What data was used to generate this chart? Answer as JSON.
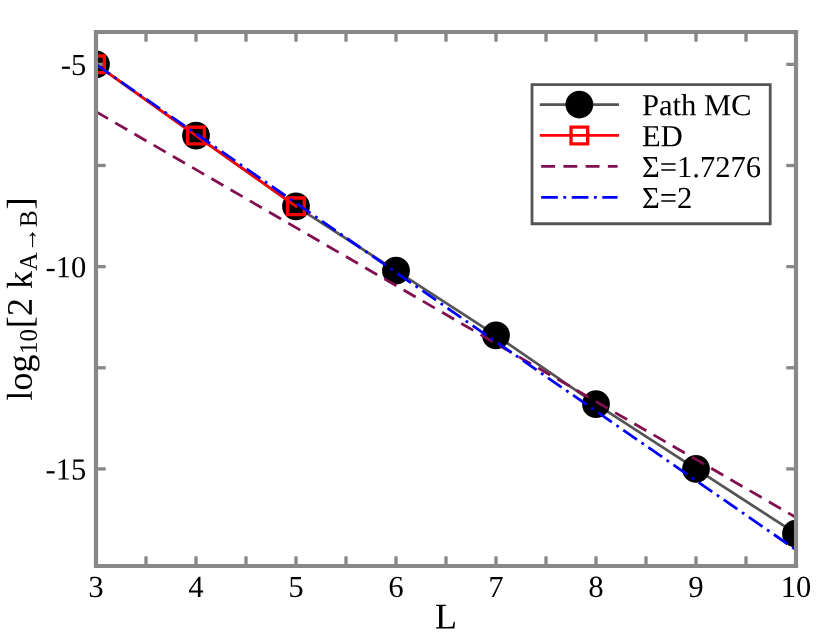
{
  "chart_data": {
    "type": "line",
    "xlabel": "L",
    "ylabel": "log$_{10}$[2 k$_{A→B}$]",
    "xlim": [
      3,
      10
    ],
    "ylim": [
      -17.4,
      -4.2
    ],
    "xticks": [
      3,
      {
        "value": 3.5,
        "label": null
      },
      4,
      {
        "value": 4.5,
        "label": null
      },
      5,
      {
        "value": 5.5,
        "label": null
      },
      6,
      {
        "value": 6.5,
        "label": null
      },
      7,
      {
        "value": 7.5,
        "label": null
      },
      8,
      {
        "value": 8.5,
        "label": null
      },
      9,
      {
        "value": 9.5,
        "label": null
      },
      10
    ],
    "yticks": [
      -5,
      {
        "value": -7.5,
        "label": null
      },
      -10,
      {
        "value": -12.5,
        "label": null
      },
      -15
    ],
    "grid": false,
    "legend": "top right",
    "series": [
      {
        "name": "Path MC",
        "color": "#000000",
        "marker": "circle",
        "line_style": "solid",
        "x": [
          3,
          4,
          5,
          6,
          7,
          8,
          9,
          10
        ],
        "values": [
          -5.0,
          -6.76,
          -8.51,
          -10.1,
          -11.7,
          -13.4,
          -15.0,
          -16.6
        ]
      },
      {
        "name": "ED",
        "color": "#ff0000",
        "marker": "square",
        "line_style": "solid",
        "x": [
          3,
          4,
          5
        ],
        "values": [
          -5.0,
          -6.76,
          -8.51
        ]
      },
      {
        "name": "Σ=1.7276",
        "color": "#801050",
        "marker": "none",
        "line_style": "dashed",
        "x": [
          3,
          10
        ],
        "values": [
          -6.17,
          -16.2
        ]
      },
      {
        "name": "Σ=2",
        "color": "#0000ff",
        "marker": "none",
        "line_style": "dashdot",
        "x": [
          3,
          10
        ],
        "values": [
          -5.0,
          -17.0
        ]
      }
    ]
  }
}
